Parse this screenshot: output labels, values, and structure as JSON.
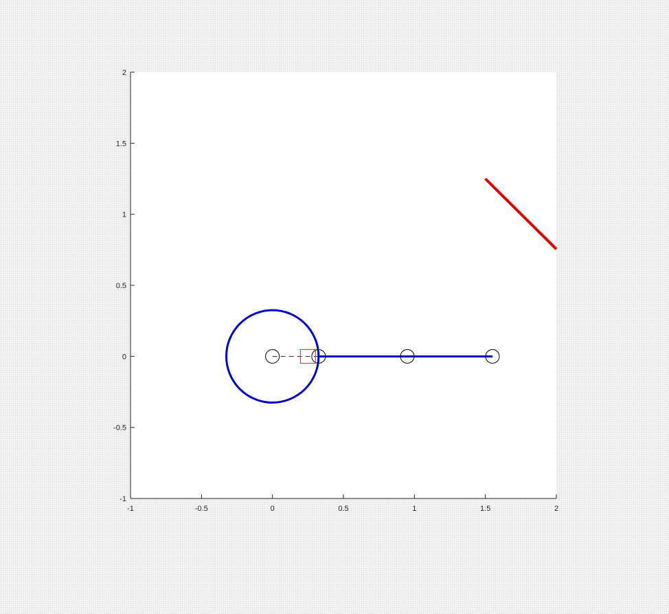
{
  "chart_data": {
    "type": "line",
    "title": "",
    "xlabel": "",
    "ylabel": "",
    "xlim": [
      -1,
      2
    ],
    "ylim": [
      -1,
      2
    ],
    "grid": false,
    "box": false,
    "xticks": [
      -1,
      -0.5,
      0,
      0.5,
      1,
      1.5,
      2
    ],
    "yticks": [
      -1,
      -0.5,
      0,
      0.5,
      1,
      1.5,
      2
    ],
    "xtick_labels": [
      "-1",
      "-0.5",
      "0",
      "0.5",
      "1",
      "1.5",
      "2"
    ],
    "ytick_labels": [
      "-1",
      "-0.5",
      "0",
      "0.5",
      "1",
      "1.5",
      "2"
    ],
    "series": [
      {
        "kind": "circle",
        "color": "#0000cc",
        "center": [
          0,
          0
        ],
        "radius": 0.325
      },
      {
        "kind": "line",
        "color": "#0000cc",
        "style": "solid",
        "x": [
          0.325,
          1.55
        ],
        "y": [
          0,
          0
        ]
      },
      {
        "kind": "line",
        "color": "#262626",
        "style": "dashed",
        "x": [
          0,
          0.325
        ],
        "y": [
          0,
          0
        ]
      },
      {
        "kind": "markers",
        "marker": "circle",
        "color": "#000000",
        "x": [
          0,
          0.325,
          0.95,
          1.55
        ],
        "y": [
          0,
          0,
          0,
          0
        ]
      },
      {
        "kind": "markers",
        "marker": "square",
        "color": "#e02020",
        "x": [
          0.25
        ],
        "y": [
          0
        ]
      },
      {
        "kind": "line",
        "color": "#e00000",
        "style": "solid",
        "x": [
          1.5,
          2
        ],
        "y": [
          1.25,
          0.755
        ]
      }
    ]
  }
}
